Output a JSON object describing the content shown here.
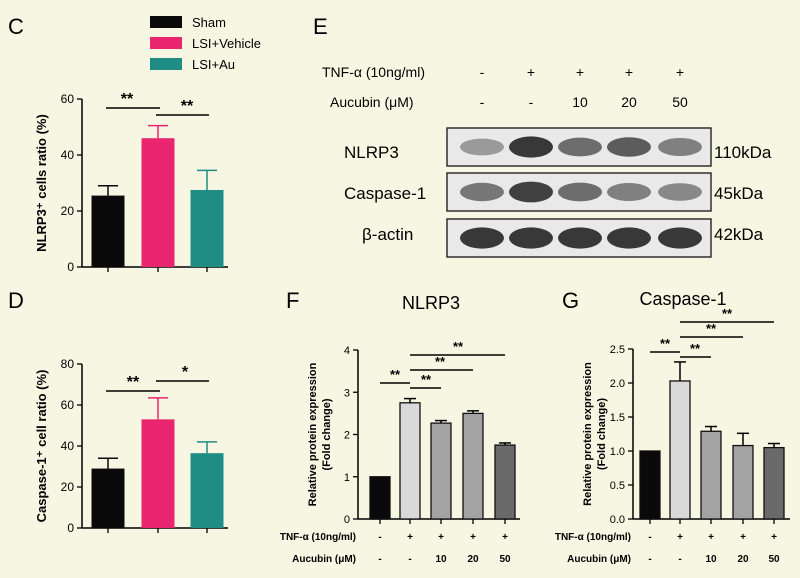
{
  "colors": {
    "background": "#f7f6e2",
    "sham": "#0a0a0a",
    "vehicle": "#e8256e",
    "au": "#1f8d83",
    "light_gray": "#d9d9d9",
    "mid_gray": "#a3a3a3",
    "dark_gray": "#6a6a6a"
  },
  "legend": {
    "items": [
      {
        "label": "Sham",
        "color": "#0a0a0a"
      },
      {
        "label": "LSI+Vehicle",
        "color": "#e8256e"
      },
      {
        "label": "LSI+Au",
        "color": "#1f8d83"
      }
    ]
  },
  "panels": {
    "C": "C",
    "D": "D",
    "E": "E",
    "F": "F",
    "G": "G"
  },
  "blot": {
    "conditions": [
      {
        "tnf": "-",
        "aucubin": "-"
      },
      {
        "tnf": "+",
        "aucubin": "-"
      },
      {
        "tnf": "+",
        "aucubin": "10"
      },
      {
        "tnf": "+",
        "aucubin": "20"
      },
      {
        "tnf": "+",
        "aucubin": "50"
      }
    ],
    "tnf_label": "TNF-α (10ng/ml)",
    "aucubin_label": "Aucubin (μM)",
    "bands": [
      {
        "protein": "NLRP3",
        "size": "110kDa",
        "intensity": [
          0.35,
          0.9,
          0.6,
          0.7,
          0.5
        ]
      },
      {
        "protein": "Caspase-1",
        "size": "45kDa",
        "intensity": [
          0.55,
          0.85,
          0.6,
          0.5,
          0.45
        ]
      },
      {
        "protein": "β-actin",
        "size": "42kDa",
        "intensity": [
          0.9,
          0.9,
          0.9,
          0.9,
          0.9
        ]
      }
    ]
  },
  "chart_data": [
    {
      "id": "C",
      "type": "bar",
      "title": "",
      "ylabel": "NLRP3⁺ cells ratio (%)",
      "categories": [
        "Sham",
        "LSI+Vehicle",
        "LSI+Au"
      ],
      "values": [
        25.5,
        46,
        27.5
      ],
      "errors": [
        3.5,
        4.5,
        7
      ],
      "ylim": [
        0,
        60
      ],
      "yticks": [
        0,
        20,
        40,
        60
      ],
      "sig": [
        {
          "from": 0,
          "to": 1,
          "label": "**"
        },
        {
          "from": 1,
          "to": 2,
          "label": "**"
        }
      ]
    },
    {
      "id": "D",
      "type": "bar",
      "title": "",
      "ylabel": "Caspase-1⁺ cell ratio (%)",
      "categories": [
        "Sham",
        "LSI+Vehicle",
        "LSI+Au"
      ],
      "values": [
        29,
        53,
        36.5
      ],
      "errors": [
        5,
        10.5,
        5.5
      ],
      "ylim": [
        0,
        80
      ],
      "yticks": [
        0,
        20,
        40,
        60,
        80
      ],
      "sig": [
        {
          "from": 0,
          "to": 1,
          "label": "**"
        },
        {
          "from": 1,
          "to": 2,
          "label": "*"
        }
      ]
    },
    {
      "id": "F",
      "type": "bar",
      "title": "NLRP3",
      "ylabel": "Relative protein expression",
      "ylabel2": "(Fold change)",
      "values": [
        1,
        2.75,
        2.27,
        2.5,
        1.75
      ],
      "errors": [
        0,
        0.1,
        0.06,
        0.06,
        0.05
      ],
      "ylim": [
        0,
        4
      ],
      "yticks": [
        "0",
        "1",
        "2",
        "3",
        "4"
      ],
      "tnf": [
        "-",
        "+",
        "+",
        "+",
        "+"
      ],
      "aucubin": [
        "-",
        "-",
        "10",
        "20",
        "50"
      ],
      "row_tnf": "TNF-α (10ng/ml)",
      "row_aucubin": "Aucubin (μM)",
      "sig": [
        {
          "from": 0,
          "to": 1,
          "label": "**"
        },
        {
          "from": 1,
          "to": 2,
          "label": "**"
        },
        {
          "from": 1,
          "to": 3,
          "label": "**"
        },
        {
          "from": 1,
          "to": 4,
          "label": "**"
        }
      ]
    },
    {
      "id": "G",
      "type": "bar",
      "title": "Caspase-1",
      "ylabel": "Relative protein expression",
      "ylabel2": "(Fold change)",
      "values": [
        1,
        2.03,
        1.29,
        1.08,
        1.05
      ],
      "errors": [
        0,
        0.28,
        0.07,
        0.18,
        0.06
      ],
      "ylim": [
        0,
        2.5
      ],
      "yticks": [
        "0.0",
        "0.5",
        "1.0",
        "1.5",
        "2.0",
        "2.5"
      ],
      "tnf": [
        "-",
        "+",
        "+",
        "+",
        "+"
      ],
      "aucubin": [
        "-",
        "-",
        "10",
        "20",
        "50"
      ],
      "row_tnf": "TNF-α (10ng/ml)",
      "row_aucubin": "Aucubin (μM)",
      "sig": [
        {
          "from": 0,
          "to": 1,
          "label": "**"
        },
        {
          "from": 1,
          "to": 2,
          "label": "**"
        },
        {
          "from": 1,
          "to": 3,
          "label": "**"
        },
        {
          "from": 1,
          "to": 4,
          "label": "**"
        }
      ]
    }
  ]
}
